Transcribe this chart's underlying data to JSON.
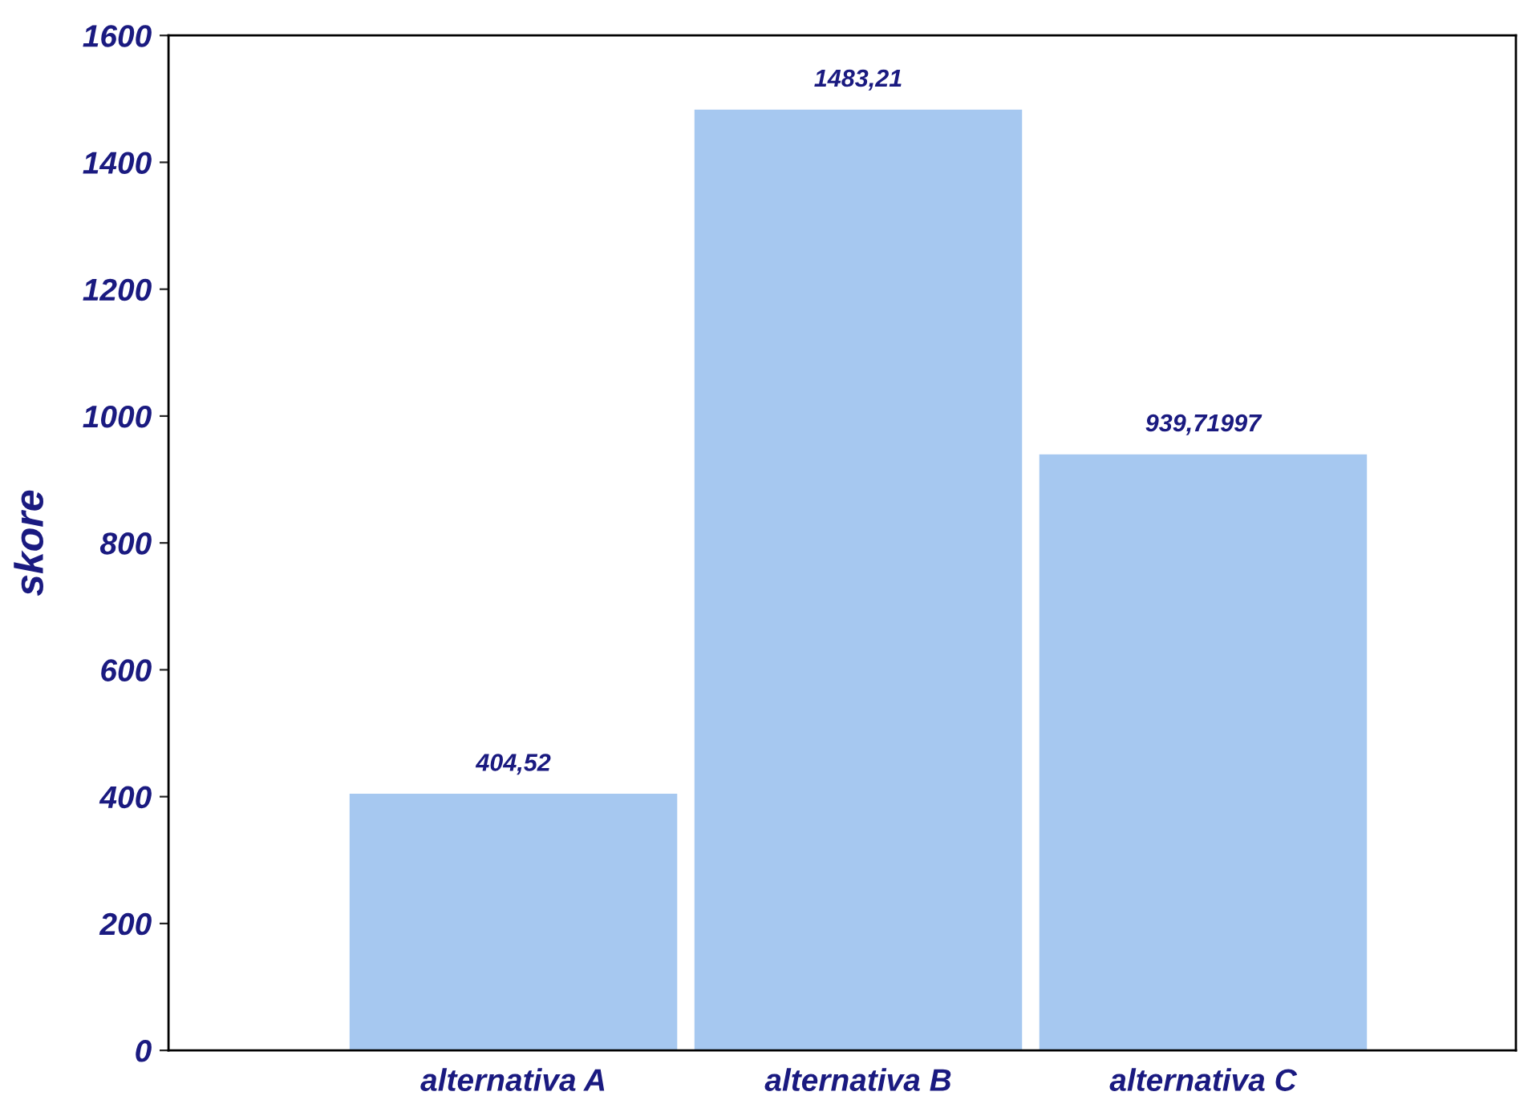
{
  "chart_data": {
    "type": "bar",
    "ylabel": "skore",
    "categories": [
      "alternativa A",
      "alternativa B",
      "alternativa C"
    ],
    "values": [
      404.52,
      1483.21,
      939.71997
    ],
    "value_labels": [
      "404,52",
      "1483,21",
      "939,71997"
    ],
    "color": "#a6c8f0",
    "ylim": [
      0,
      1600
    ],
    "yticks": [
      0,
      200,
      400,
      600,
      800,
      1000,
      1200,
      1400,
      1600
    ],
    "grid": false,
    "legend": false
  }
}
